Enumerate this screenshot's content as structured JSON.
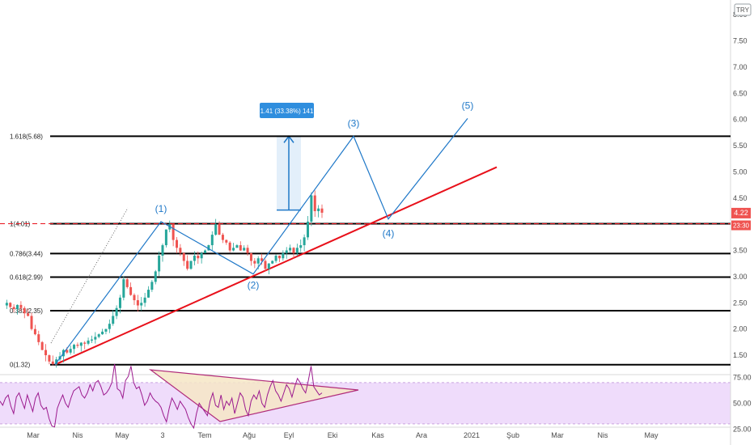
{
  "currency_badge": "TRY",
  "colors": {
    "fib_line": "#000000",
    "trend_line": "#e8101a",
    "wave": "#1f78c8",
    "candle_up": "#26a69a",
    "candle_down": "#ef5350",
    "price_dash": "#e8101a",
    "price_label_bg": "#ef5350",
    "rsi_line": "#9c1a8e",
    "rsi_band": "#efdcfb",
    "triangle": "#b02c7a",
    "triangle_fill": "#f6e6c6",
    "measure_box": "#e3effa",
    "measure_label_bg": "#2f8ede"
  },
  "price_labels": {
    "last_price": "4.22",
    "countdown": "23:30"
  },
  "measure_label": "1.41 (33.38%) 141",
  "fib_levels": [
    {
      "label": "1.618(5.68)",
      "value": 5.68
    },
    {
      "label": "1(4.01)",
      "value": 4.01
    },
    {
      "label": "0.786(3.44)",
      "value": 3.44
    },
    {
      "label": "0.618(2.99)",
      "value": 2.99
    },
    {
      "label": "0.382(2.35)",
      "value": 2.35
    },
    {
      "label": "0(1.32)",
      "value": 1.32
    }
  ],
  "chart_data": [
    {
      "type": "line",
      "price_axis": {
        "ylim": [
          1.13,
          8.28
        ],
        "ticks": [
          "8.00",
          "7.50",
          "7.00",
          "6.50",
          "6.00",
          "5.50",
          "5.00",
          "4.50",
          "4.00",
          "3.50",
          "3.00",
          "2.50",
          "2.00",
          "1.50"
        ]
      },
      "time_axis": {
        "labels": [
          "Mar",
          "Nis",
          "May",
          "3",
          "Tem",
          "Ağu",
          "Eyl",
          "Eki",
          "Kas",
          "Ara",
          "2021",
          "Şub",
          "Mar",
          "Nis",
          "May"
        ]
      },
      "elliott_wave": {
        "points": [
          {
            "label": "",
            "x": "Mar",
            "y": 1.32
          },
          {
            "label": "(1)",
            "x": "May-Haz",
            "y": 4.05
          },
          {
            "label": "(2)",
            "x": "Ağu",
            "y": 3.05
          },
          {
            "label": "(3)",
            "x": "Eki",
            "y": 5.68
          },
          {
            "label": "(4)",
            "x": "Kas",
            "y": 4.1
          },
          {
            "label": "(5)",
            "x": "2021",
            "y": 6.02
          }
        ]
      },
      "trendline": {
        "from": {
          "x": "Mar",
          "y": 1.32
        },
        "to": {
          "x": "2021",
          "y": 5.09
        }
      },
      "price_series": {
        "last": 4.22,
        "values": [
          2.45,
          2.5,
          2.42,
          2.38,
          2.46,
          2.4,
          2.3,
          2.25,
          2.0,
          1.9,
          1.75,
          1.6,
          1.5,
          1.38,
          1.33,
          1.42,
          1.48,
          1.6,
          1.55,
          1.62,
          1.7,
          1.68,
          1.74,
          1.72,
          1.78,
          1.8,
          1.85,
          1.9,
          1.95,
          2.0,
          2.1,
          2.25,
          2.4,
          2.6,
          2.95,
          2.8,
          2.65,
          2.55,
          2.45,
          2.5,
          2.6,
          2.75,
          2.9,
          3.1,
          3.4,
          3.6,
          3.9,
          4.0,
          3.7,
          3.55,
          3.45,
          3.3,
          3.15,
          3.3,
          3.4,
          3.35,
          3.45,
          3.5,
          3.6,
          3.8,
          4.0,
          3.8,
          3.7,
          3.65,
          3.5,
          3.55,
          3.6,
          3.5,
          3.55,
          3.45,
          3.3,
          3.25,
          3.35,
          3.3,
          3.15,
          3.25,
          3.3,
          3.4,
          3.35,
          3.45,
          3.5,
          3.55,
          3.45,
          3.55,
          3.6,
          3.75,
          4.05,
          4.55,
          4.25,
          4.3,
          4.22
        ]
      }
    },
    {
      "type": "line",
      "name": "RSI",
      "ylim": [
        15,
        95
      ],
      "ticks": [
        "75.00",
        "50.00",
        "25.00"
      ],
      "band": [
        30,
        70
      ],
      "values": [
        52,
        48,
        55,
        58,
        47,
        40,
        56,
        60,
        52,
        45,
        58,
        50,
        42,
        55,
        60,
        48,
        44,
        46,
        35,
        28,
        27,
        45,
        52,
        58,
        50,
        46,
        55,
        62,
        64,
        66,
        58,
        55,
        60,
        68,
        62,
        70,
        72,
        66,
        58,
        60,
        64,
        70,
        88,
        64,
        62,
        55,
        72,
        76,
        86,
        70,
        64,
        66,
        58,
        48,
        52,
        60,
        55,
        52,
        50,
        46,
        38,
        32,
        45,
        55,
        50,
        44,
        52,
        48,
        44,
        36,
        30,
        26,
        40,
        50,
        46,
        42,
        38,
        52,
        60,
        48,
        46,
        58,
        44,
        52,
        48,
        55,
        40,
        50,
        60,
        56,
        44,
        38,
        52,
        58,
        54,
        62,
        50,
        46,
        58,
        66,
        72,
        62,
        58,
        52,
        60,
        68,
        64,
        56,
        66,
        74,
        70,
        64,
        60,
        72,
        86,
        66,
        62,
        58,
        60
      ]
    }
  ]
}
